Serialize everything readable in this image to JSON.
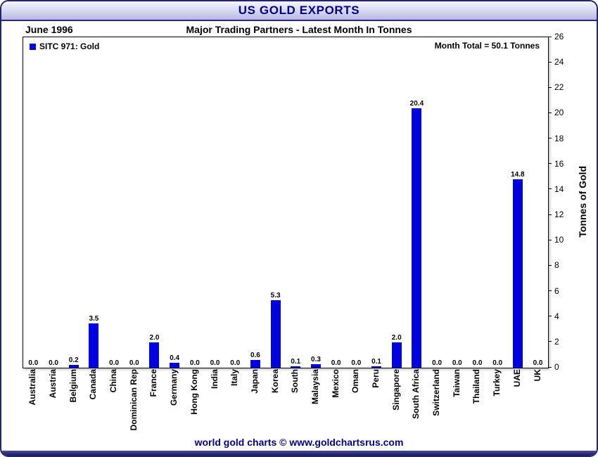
{
  "titlebar": {
    "title": "US GOLD EXPORTS"
  },
  "header": {
    "date": "June 1996",
    "subtitle": "Major Trading Partners - Latest Month In Tonnes"
  },
  "legend": {
    "label": "SITC 971: Gold"
  },
  "annotations": {
    "month_total": "Month Total = 50.1 Tonnes"
  },
  "footer": {
    "text": "world gold charts © www.goldchartsrus.com"
  },
  "colors": {
    "bar": "#0000e0",
    "title_text": "#00008b",
    "frame_border": "#23236e"
  },
  "chart_data": {
    "type": "bar",
    "title": "US GOLD EXPORTS",
    "subtitle": "Major Trading Partners - Latest Month In Tonnes",
    "month": "June 1996",
    "month_total_tonnes": 50.1,
    "series_name": "SITC 971: Gold",
    "categories": [
      "Australia",
      "Austria",
      "Belgium",
      "Canada",
      "China",
      "Dominican Rep",
      "France",
      "Germany",
      "Hong Kong",
      "India",
      "Italy",
      "Japan",
      "Korea",
      "South",
      "Malaysia",
      "Mexico",
      "Oman",
      "Peru",
      "Singapore",
      "South Africa",
      "Switzerland",
      "Taiwan",
      "Thailand",
      "Turkey",
      "UAE",
      "UK"
    ],
    "values": [
      0.0,
      0.0,
      0.2,
      3.5,
      0.0,
      0.0,
      2.0,
      0.4,
      0.0,
      0.0,
      0.0,
      0.6,
      5.3,
      0.1,
      0.3,
      0.0,
      0.0,
      0.1,
      2.0,
      20.4,
      0.0,
      0.0,
      0.0,
      0.0,
      14.8,
      0.0
    ],
    "xlabel": "",
    "ylabel": "Tonnes of Gold",
    "ylim": [
      0,
      26
    ],
    "ytick_step": 2,
    "grid": false,
    "legend_position": "top-left",
    "value_labels": true
  }
}
